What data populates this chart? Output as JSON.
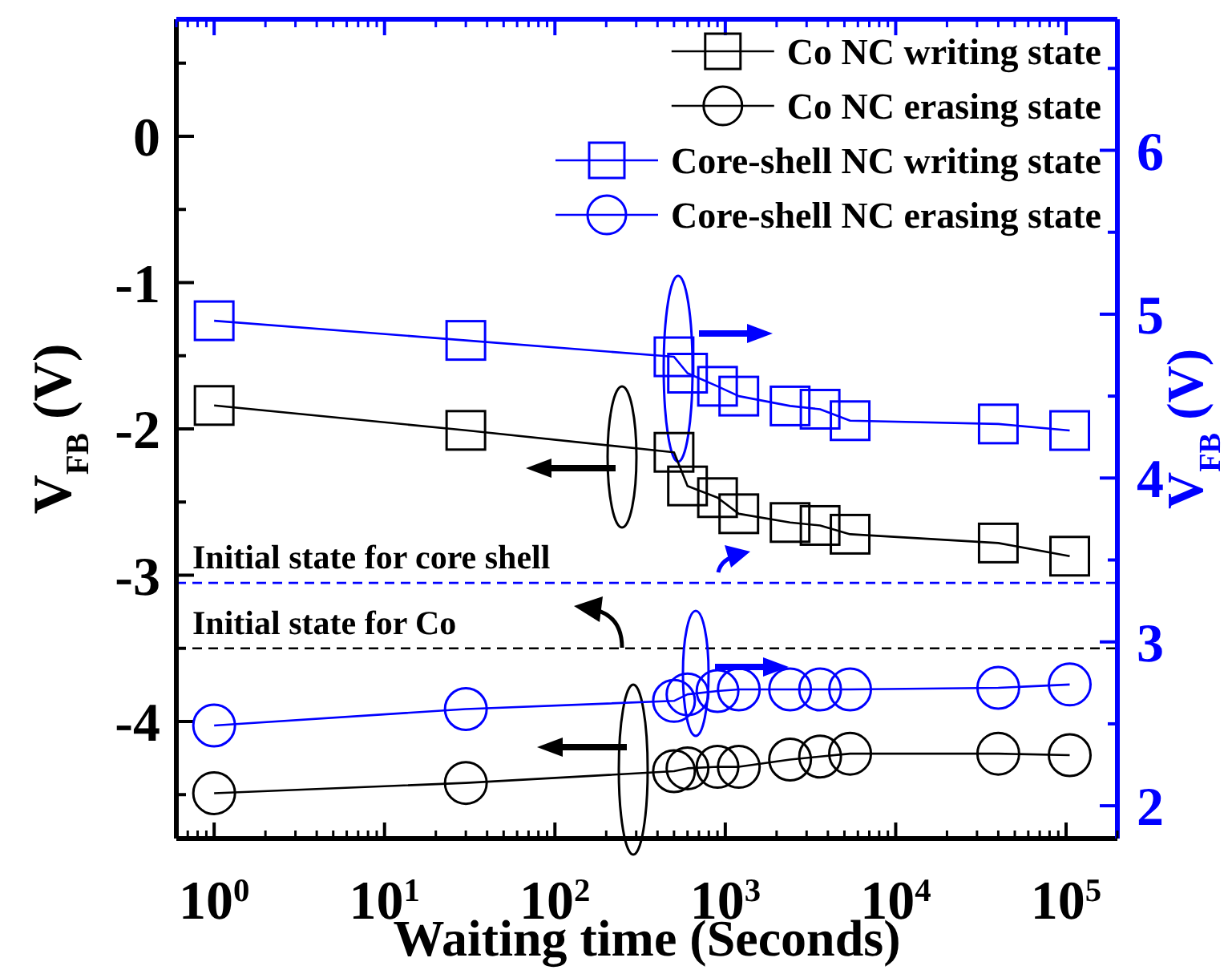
{
  "chart_data": {
    "type": "line",
    "xlabel": "Waiting time (Seconds)",
    "ylabel": "V$_{FB}$ (V)",
    "y2label": "V$_{FB}$ (V)",
    "log": "x",
    "legend": "top right",
    "grid": false,
    "xlim": [
      0.6,
      200000
    ],
    "ylim": [
      -4.8,
      0.8
    ],
    "y2lim": [
      1.8,
      6.8
    ],
    "xticks": [
      {
        "value": 1,
        "label": "10$^{0}$"
      },
      {
        "value": 10,
        "label": "10$^{1}$"
      },
      {
        "value": 100,
        "label": "10$^{2}$"
      },
      {
        "value": 1000,
        "label": "10$^{3}$"
      },
      {
        "value": 10000,
        "label": "10$^{4}$"
      },
      {
        "value": 100000,
        "label": "10$^{5}$"
      }
    ],
    "yticks": [
      {
        "value": -4.5,
        "label": null
      },
      -4,
      {
        "value": -3.5,
        "label": null
      },
      -3,
      {
        "value": -2.5,
        "label": null
      },
      -2,
      {
        "value": -1.5,
        "label": null
      },
      -1,
      {
        "value": -0.5,
        "label": null
      },
      0,
      {
        "value": 0.5,
        "label": null
      }
    ],
    "y2ticks": [
      2,
      {
        "value": 2.5,
        "label": null
      },
      3,
      {
        "value": 3.5,
        "label": null
      },
      4,
      {
        "value": 4.5,
        "label": null
      },
      5,
      {
        "value": 5.5,
        "label": null
      },
      6,
      {
        "value": 6.5,
        "label": null
      }
    ],
    "x": [
      1,
      30,
      500,
      600,
      900,
      1200,
      2400,
      3600,
      5400,
      40000,
      105000
    ],
    "series": [
      {
        "name": "Co NC writing state",
        "color": "#000000",
        "marker": "square",
        "values": [
          -1.84,
          -2.01,
          -2.16,
          -2.39,
          -2.47,
          -2.58,
          -2.64,
          -2.66,
          -2.72,
          -2.78,
          -2.87
        ]
      },
      {
        "name": "Co NC erasing state",
        "color": "#000000",
        "marker": "circle",
        "values": [
          -4.49,
          -4.42,
          -4.34,
          -4.32,
          -4.31,
          -4.31,
          -4.26,
          -4.24,
          -4.22,
          -4.22,
          -4.23
        ]
      },
      {
        "name": "Core-shell NC writing state",
        "color": "#0000ff",
        "marker": "square",
        "axis": "y2",
        "values": [
          4.96,
          4.84,
          4.74,
          4.64,
          4.56,
          4.5,
          4.44,
          4.42,
          4.35,
          4.33,
          4.29
        ]
      },
      {
        "name": "Core-shell NC erasing state",
        "color": "#0000ff",
        "marker": "circle",
        "axis": "y2",
        "values": [
          2.49,
          2.59,
          2.64,
          2.68,
          2.7,
          2.71,
          2.71,
          2.71,
          2.71,
          2.72,
          2.74
        ]
      }
    ],
    "ref_lines": [
      {
        "axis": "y2",
        "value": 3.36,
        "label": "Initial state for core shell",
        "color": "#0000ff",
        "line_style": "dashed"
      },
      {
        "axis": "y",
        "value": -3.5,
        "label": "Initial state for Co",
        "color": "#000000",
        "line_style": "dashed"
      }
    ]
  }
}
